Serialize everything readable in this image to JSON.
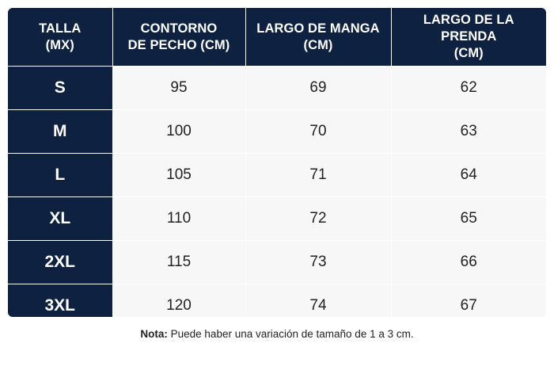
{
  "table": {
    "headers": [
      {
        "line1": "TALLA",
        "line2": "(MX)"
      },
      {
        "line1": "CONTORNO",
        "line2": "DE PECHO (CM)"
      },
      {
        "line1": "LARGO DE MANGA",
        "line2": "(CM)"
      },
      {
        "line1": "LARGO DE LA PRENDA",
        "line2": "(CM)"
      }
    ],
    "rows": [
      {
        "size": "S",
        "chest": "95",
        "sleeve": "69",
        "length": "62"
      },
      {
        "size": "M",
        "chest": "100",
        "sleeve": "70",
        "length": "63"
      },
      {
        "size": "L",
        "chest": "105",
        "sleeve": "71",
        "length": "64"
      },
      {
        "size": "XL",
        "chest": "110",
        "sleeve": "72",
        "length": "65"
      },
      {
        "size": "2XL",
        "chest": "115",
        "sleeve": "73",
        "length": "66"
      },
      {
        "size": "3XL",
        "chest": "120",
        "sleeve": "74",
        "length": "67"
      }
    ]
  },
  "note": {
    "label": "Nota:",
    "text": " Puede haber una variación de tamaño de 1 a 3 cm."
  },
  "colors": {
    "header_bg": "#0f2140",
    "cell_bg": "#f7f7f7"
  }
}
